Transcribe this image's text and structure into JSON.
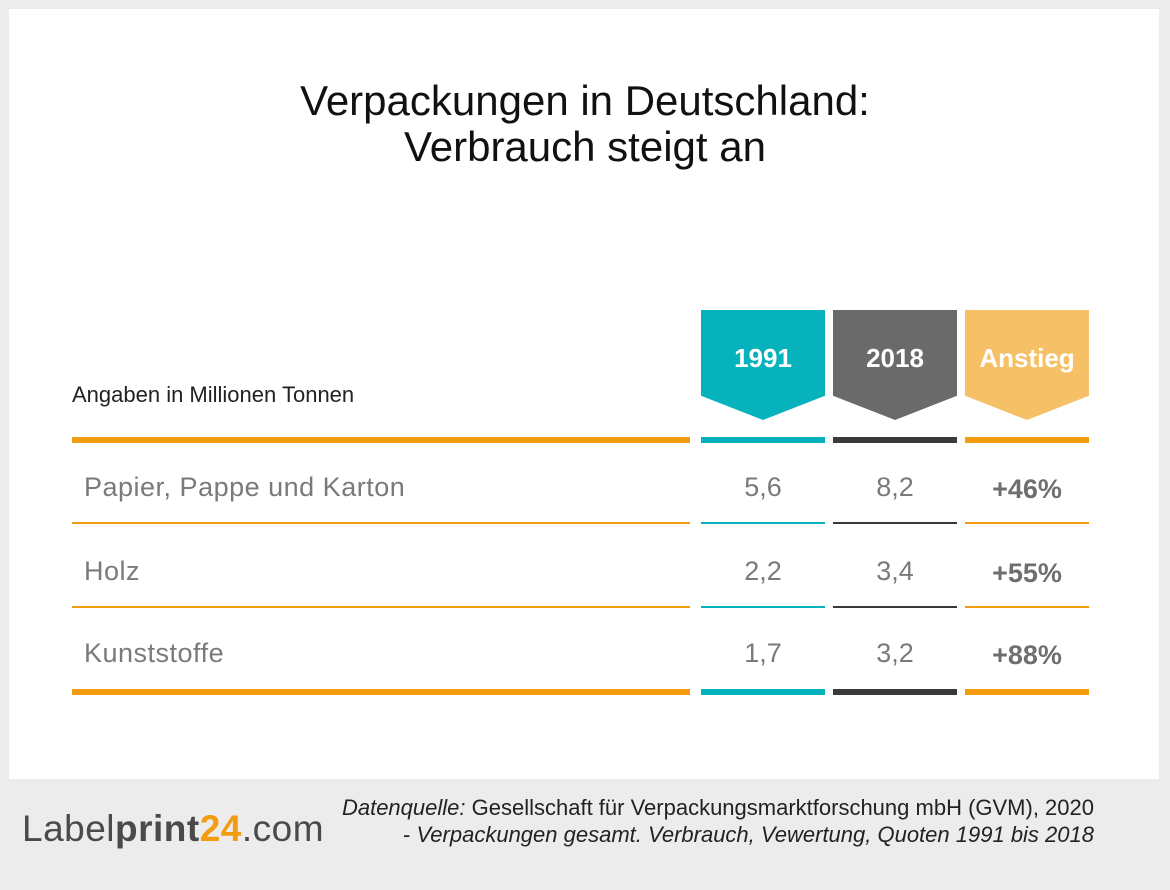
{
  "chart_data": {
    "type": "table",
    "title_line1": "Verpackungen in Deutschland:",
    "title_line2": "Verbrauch steigt an",
    "unit_label": "Angaben in Millionen Tonnen",
    "columns": [
      {
        "label": "1991",
        "color": "#06b2bb"
      },
      {
        "label": "2018",
        "color": "#6a6a6a"
      },
      {
        "label": "Anstieg",
        "color": "#f6c067"
      }
    ],
    "rows": [
      {
        "label": "Papier, Pappe und Karton",
        "v1991": "5,6",
        "v2018": "8,2",
        "rise": "+46%"
      },
      {
        "label": "Holz",
        "v1991": "2,2",
        "v2018": "3,4",
        "rise": "+55%"
      },
      {
        "label": "Kunststoffe",
        "v1991": "1,7",
        "v2018": "3,2",
        "rise": "+88%"
      }
    ]
  },
  "colors": {
    "accent_orange": "#f39c12",
    "teal": "#06b2bb",
    "dark_gray": "#3a3a3a"
  },
  "logo": {
    "part1": "Label",
    "part2": "print",
    "part3": "24",
    "part4": ".com"
  },
  "source": {
    "prefix": "Datenquelle:",
    "org": "Gesellschaft für Verpackungsmarktforschung mbH (GVM), 2020 - ",
    "publication": "Verpackungen gesamt. Verbrauch, Vewertung, Quoten 1991 bis 2018"
  }
}
